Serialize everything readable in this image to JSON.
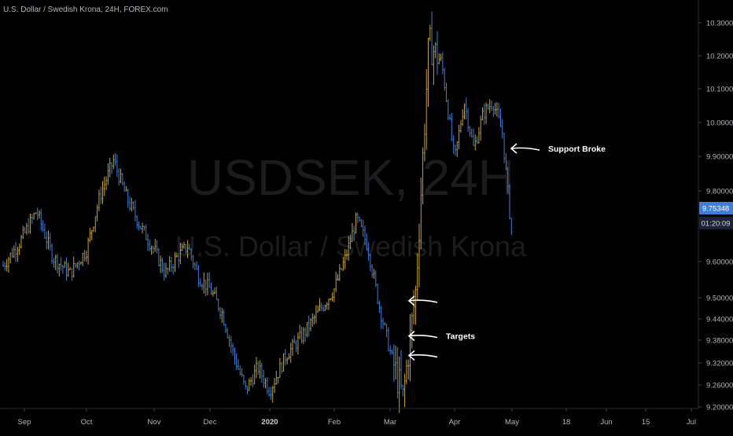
{
  "header": {
    "title": "U.S. Dollar / Swedish Krona, 24H, FOREX.com"
  },
  "watermark": {
    "symbol": "USDSEK, 24H",
    "name": "U.S. Dollar / Swedish Krona"
  },
  "colors": {
    "background": "#000000",
    "up_bar": "#c8a22a",
    "down_bar": "#3d7fd6",
    "text": "#b2b5be",
    "price_badge_bg": "#3d7fd6",
    "countdown_badge_bg": "#1e2236",
    "annotation": "#ffffff"
  },
  "chart_data": {
    "type": "ohlc",
    "symbol": "USDSEK",
    "interval": "24H",
    "source": "FOREX.com",
    "y_ticks": [
      10.3,
      10.2,
      10.1,
      10.0,
      9.9,
      9.8,
      9.6,
      9.5,
      9.44,
      9.38,
      9.32,
      9.26,
      9.2
    ],
    "y_tick_labels": [
      "10.30000",
      "10.20000",
      "10.10000",
      "10.00000",
      "9.90000",
      "9.80000",
      "9.60000",
      "9.50000",
      "9.44000",
      "9.38000",
      "9.32000",
      "9.26000",
      "9.20000"
    ],
    "x_ticks": [
      {
        "label": "Sep",
        "bold": false
      },
      {
        "label": "Oct",
        "bold": false
      },
      {
        "label": "Nov",
        "bold": false
      },
      {
        "label": "Dec",
        "bold": false
      },
      {
        "label": "2020",
        "bold": true
      },
      {
        "label": "Feb",
        "bold": false
      },
      {
        "label": "Mar",
        "bold": false
      },
      {
        "label": "Apr",
        "bold": false
      },
      {
        "label": "May",
        "bold": false
      },
      {
        "label": "18",
        "bold": false
      },
      {
        "label": "Jun",
        "bold": false
      },
      {
        "label": "15",
        "bold": false
      },
      {
        "label": "Jul",
        "bold": false
      }
    ],
    "last_price": "9.75348",
    "countdown": "01:20:09",
    "price_path": [
      [
        "Sep",
        9.68
      ],
      [
        "Sep",
        9.74
      ],
      [
        "Sep",
        9.82
      ],
      [
        "Sep",
        9.7
      ],
      [
        "Sep",
        9.66
      ],
      [
        "Oct",
        9.72
      ],
      [
        "Oct",
        9.86
      ],
      [
        "Oct",
        9.95
      ],
      [
        "Oct",
        9.85
      ],
      [
        "Oct",
        9.78
      ],
      [
        "Nov",
        9.72
      ],
      [
        "Nov",
        9.66
      ],
      [
        "Nov",
        9.7
      ],
      [
        "Nov",
        9.73
      ],
      [
        "Nov",
        9.65
      ],
      [
        "Dec",
        9.62
      ],
      [
        "Dec",
        9.56
      ],
      [
        "Dec",
        9.45
      ],
      [
        "Dec",
        9.36
      ],
      [
        "Dec",
        9.42
      ],
      [
        "2020",
        9.36
      ],
      [
        "2020",
        9.45
      ],
      [
        "2020",
        9.5
      ],
      [
        "2020",
        9.56
      ],
      [
        "Feb",
        9.62
      ],
      [
        "Feb",
        9.7
      ],
      [
        "Feb",
        9.8
      ],
      [
        "Feb",
        9.73
      ],
      [
        "Feb",
        9.58
      ],
      [
        "Mar",
        9.46
      ],
      [
        "Mar",
        9.34
      ],
      [
        "Mar",
        9.62
      ],
      [
        "Mar",
        10.25
      ],
      [
        "Mar",
        10.2
      ],
      [
        "Apr",
        9.95
      ],
      [
        "Apr",
        10.1
      ],
      [
        "Apr",
        9.98
      ],
      [
        "Apr",
        10.07
      ],
      [
        "Apr",
        10.1
      ],
      [
        "Apr",
        10.02
      ],
      [
        "May",
        9.75
      ]
    ],
    "annotations": [
      {
        "text": "Support Broke",
        "price": 9.98
      },
      {
        "text": "Targets",
        "price": 9.5
      },
      {
        "text": "",
        "price": 9.59
      },
      {
        "text": "",
        "price": 9.45
      }
    ]
  }
}
